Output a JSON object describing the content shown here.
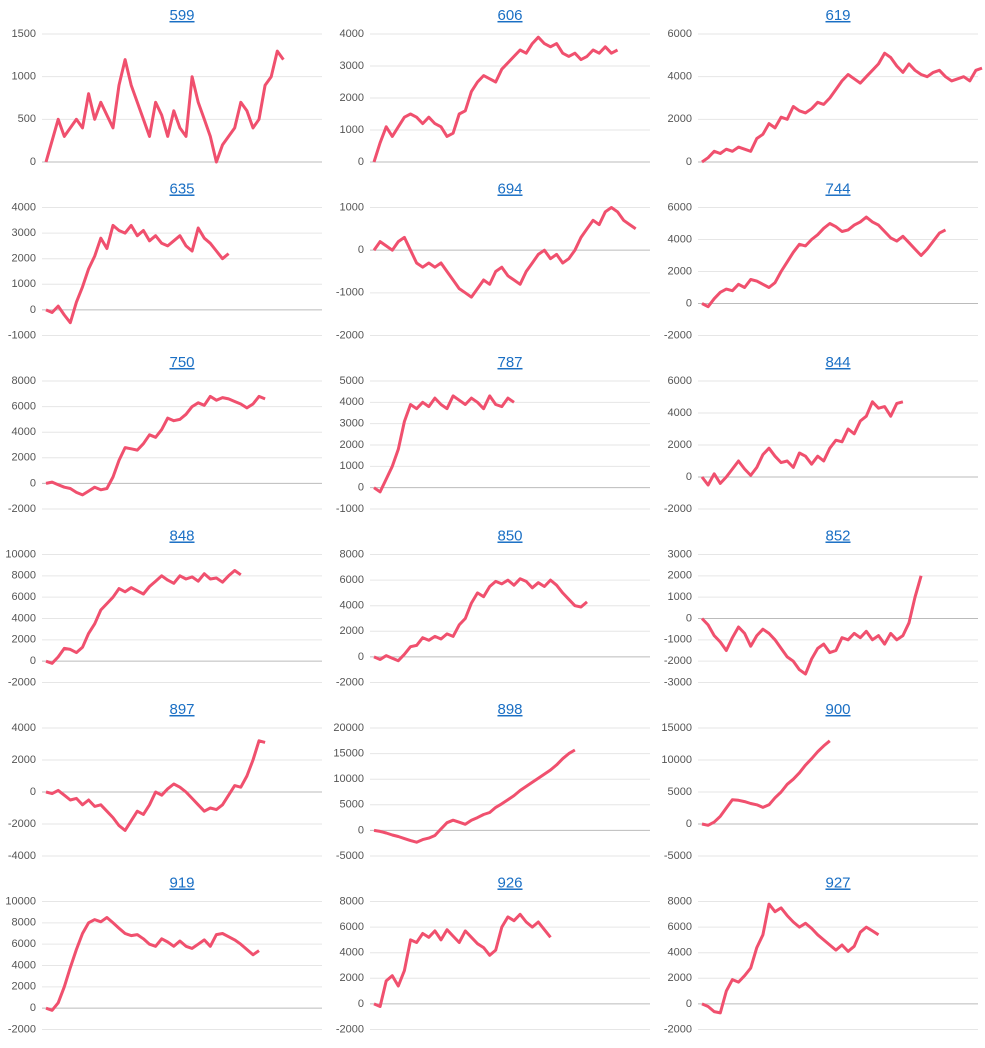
{
  "chart_data": [
    {
      "type": "line",
      "title": "599",
      "color": "#f0506e",
      "grid": true,
      "ylim": [
        0,
        1500
      ],
      "yticks": [
        0,
        500,
        1000,
        1500
      ],
      "values": [
        0,
        250,
        500,
        300,
        400,
        500,
        400,
        800,
        500,
        700,
        550,
        400,
        900,
        1200,
        900,
        700,
        500,
        300,
        700,
        550,
        300,
        600,
        400,
        300,
        1000,
        700,
        500,
        300,
        0,
        200,
        300,
        400,
        700,
        600,
        400,
        500,
        900,
        1000,
        1300,
        1200
      ]
    },
    {
      "type": "line",
      "title": "606",
      "color": "#f0506e",
      "grid": true,
      "ylim": [
        0,
        4000
      ],
      "yticks": [
        0,
        1000,
        2000,
        3000,
        4000
      ],
      "values": [
        0,
        600,
        1100,
        800,
        1100,
        1400,
        1500,
        1400,
        1200,
        1400,
        1200,
        1100,
        800,
        900,
        1500,
        1600,
        2200,
        2500,
        2700,
        2600,
        2500,
        2900,
        3100,
        3300,
        3500,
        3400,
        3700,
        3900,
        3700,
        3600,
        3700,
        3400,
        3300,
        3400,
        3200,
        3300,
        3500,
        3400,
        3600,
        3400,
        3500
      ]
    },
    {
      "type": "line",
      "title": "619",
      "color": "#f0506e",
      "grid": true,
      "ylim": [
        0,
        6000
      ],
      "yticks": [
        0,
        2000,
        4000,
        6000
      ],
      "values": [
        0,
        200,
        500,
        400,
        600,
        500,
        700,
        600,
        500,
        1100,
        1300,
        1800,
        1600,
        2100,
        2000,
        2600,
        2400,
        2300,
        2500,
        2800,
        2700,
        3000,
        3400,
        3800,
        4100,
        3900,
        3700,
        4000,
        4300,
        4600,
        5100,
        4900,
        4500,
        4200,
        4600,
        4300,
        4100,
        4000,
        4200,
        4300,
        4000,
        3800,
        3900,
        4000,
        3800,
        4300,
        4400
      ]
    },
    {
      "type": "line",
      "title": "635",
      "color": "#f0506e",
      "grid": true,
      "ylim": [
        -1000,
        4000
      ],
      "yticks": [
        -1000,
        0,
        1000,
        2000,
        3000,
        4000
      ],
      "values": [
        0,
        -100,
        150,
        -200,
        -500,
        300,
        900,
        1600,
        2100,
        2800,
        2400,
        3300,
        3100,
        3000,
        3300,
        2900,
        3100,
        2700,
        2900,
        2600,
        2500,
        2700,
        2900,
        2500,
        2300,
        3200,
        2800,
        2600,
        2300,
        2000,
        2200
      ]
    },
    {
      "type": "line",
      "title": "694",
      "color": "#f0506e",
      "grid": true,
      "ylim": [
        -2000,
        1000
      ],
      "yticks": [
        -2000,
        -1000,
        0,
        1000
      ],
      "values": [
        0,
        200,
        100,
        0,
        200,
        300,
        0,
        -300,
        -400,
        -300,
        -400,
        -300,
        -500,
        -700,
        -900,
        -1000,
        -1100,
        -900,
        -700,
        -800,
        -500,
        -400,
        -600,
        -700,
        -800,
        -500,
        -300,
        -100,
        0,
        -200,
        -100,
        -300,
        -200,
        0,
        300,
        500,
        700,
        600,
        900,
        1000,
        900,
        700,
        600,
        500
      ]
    },
    {
      "type": "line",
      "title": "744",
      "color": "#f0506e",
      "grid": true,
      "ylim": [
        -2000,
        6000
      ],
      "yticks": [
        -2000,
        0,
        2000,
        4000,
        6000
      ],
      "values": [
        0,
        -200,
        300,
        700,
        900,
        800,
        1200,
        1000,
        1500,
        1400,
        1200,
        1000,
        1300,
        2000,
        2600,
        3200,
        3700,
        3600,
        4000,
        4300,
        4700,
        5000,
        4800,
        4500,
        4600,
        4900,
        5100,
        5400,
        5100,
        4900,
        4500,
        4100,
        3900,
        4200,
        3800,
        3400,
        3000,
        3400,
        3900,
        4400,
        4600
      ]
    },
    {
      "type": "line",
      "title": "750",
      "color": "#f0506e",
      "grid": true,
      "ylim": [
        -2000,
        8000
      ],
      "yticks": [
        -2000,
        0,
        2000,
        4000,
        6000,
        8000
      ],
      "values": [
        0,
        100,
        -100,
        -300,
        -400,
        -700,
        -900,
        -600,
        -300,
        -500,
        -400,
        500,
        1800,
        2800,
        2700,
        2600,
        3100,
        3800,
        3600,
        4200,
        5100,
        4900,
        5000,
        5400,
        6000,
        6300,
        6100,
        6800,
        6500,
        6700,
        6600,
        6400,
        6200,
        5900,
        6200,
        6800,
        6600
      ]
    },
    {
      "type": "line",
      "title": "787",
      "color": "#f0506e",
      "grid": true,
      "ylim": [
        -1000,
        5000
      ],
      "yticks": [
        -1000,
        0,
        1000,
        2000,
        3000,
        4000,
        5000
      ],
      "values": [
        0,
        -200,
        400,
        1000,
        1800,
        3100,
        3900,
        3700,
        4000,
        3800,
        4200,
        3900,
        3700,
        4300,
        4100,
        3900,
        4200,
        4000,
        3700,
        4300,
        3900,
        3800,
        4200,
        4000
      ]
    },
    {
      "type": "line",
      "title": "844",
      "color": "#f0506e",
      "grid": true,
      "ylim": [
        -2000,
        6000
      ],
      "yticks": [
        -2000,
        0,
        2000,
        4000,
        6000
      ],
      "values": [
        0,
        -500,
        200,
        -400,
        0,
        500,
        1000,
        500,
        100,
        600,
        1400,
        1800,
        1300,
        900,
        1000,
        600,
        1500,
        1300,
        800,
        1300,
        1000,
        1800,
        2300,
        2200,
        3000,
        2700,
        3500,
        3800,
        4700,
        4300,
        4400,
        3800,
        4600,
        4700
      ]
    },
    {
      "type": "line",
      "title": "848",
      "color": "#f0506e",
      "grid": true,
      "ylim": [
        -2000,
        10000
      ],
      "yticks": [
        -2000,
        0,
        2000,
        4000,
        6000,
        8000,
        10000
      ],
      "values": [
        0,
        -200,
        400,
        1200,
        1100,
        800,
        1300,
        2600,
        3500,
        4800,
        5400,
        6000,
        6800,
        6500,
        6900,
        6600,
        6300,
        7000,
        7500,
        8000,
        7600,
        7300,
        8000,
        7700,
        7900,
        7500,
        8200,
        7700,
        7800,
        7400,
        8000,
        8500,
        8100
      ]
    },
    {
      "type": "line",
      "title": "850",
      "color": "#f0506e",
      "grid": true,
      "ylim": [
        -2000,
        8000
      ],
      "yticks": [
        -2000,
        0,
        2000,
        4000,
        6000,
        8000
      ],
      "values": [
        0,
        -200,
        100,
        -100,
        -300,
        200,
        800,
        900,
        1500,
        1300,
        1600,
        1400,
        1800,
        1600,
        2500,
        3000,
        4200,
        5000,
        4700,
        5500,
        5900,
        5700,
        6000,
        5600,
        6100,
        5900,
        5400,
        5800,
        5500,
        6000,
        5600,
        5000,
        4500,
        4000,
        3900,
        4300
      ]
    },
    {
      "type": "line",
      "title": "852",
      "color": "#f0506e",
      "grid": true,
      "ylim": [
        -3000,
        3000
      ],
      "yticks": [
        -3000,
        -2000,
        -1000,
        0,
        1000,
        2000,
        3000
      ],
      "values": [
        0,
        -300,
        -800,
        -1100,
        -1500,
        -900,
        -400,
        -700,
        -1300,
        -800,
        -500,
        -700,
        -1000,
        -1400,
        -1800,
        -2000,
        -2400,
        -2600,
        -1900,
        -1400,
        -1200,
        -1600,
        -1500,
        -900,
        -1000,
        -700,
        -900,
        -600,
        -1000,
        -800,
        -1200,
        -700,
        -1000,
        -800,
        -200,
        1000,
        2000
      ]
    },
    {
      "type": "line",
      "title": "897",
      "color": "#f0506e",
      "grid": true,
      "ylim": [
        -4000,
        4000
      ],
      "yticks": [
        -4000,
        -2000,
        0,
        2000,
        4000
      ],
      "values": [
        0,
        -100,
        100,
        -200,
        -500,
        -400,
        -800,
        -500,
        -900,
        -800,
        -1200,
        -1600,
        -2100,
        -2400,
        -1800,
        -1200,
        -1400,
        -800,
        0,
        -200,
        200,
        500,
        300,
        0,
        -400,
        -800,
        -1200,
        -1000,
        -1100,
        -800,
        -200,
        400,
        300,
        1000,
        2000,
        3200,
        3100
      ]
    },
    {
      "type": "line",
      "title": "898",
      "color": "#f0506e",
      "grid": true,
      "ylim": [
        -5000,
        20000
      ],
      "yticks": [
        -5000,
        0,
        5000,
        10000,
        15000,
        20000
      ],
      "values": [
        0,
        -200,
        -500,
        -900,
        -1200,
        -1600,
        -2000,
        -2300,
        -1800,
        -1500,
        -1000,
        300,
        1500,
        2000,
        1600,
        1200,
        2000,
        2500,
        3100,
        3500,
        4500,
        5200,
        6000,
        6800,
        7800,
        8600,
        9400,
        10200,
        11000,
        11800,
        12800,
        14000,
        15000,
        15700
      ]
    },
    {
      "type": "line",
      "title": "900",
      "color": "#f0506e",
      "grid": true,
      "ylim": [
        -5000,
        15000
      ],
      "yticks": [
        -5000,
        0,
        5000,
        10000,
        15000
      ],
      "values": [
        0,
        -200,
        300,
        1200,
        2500,
        3800,
        3700,
        3500,
        3200,
        3000,
        2600,
        3000,
        4100,
        5000,
        6200,
        7000,
        8000,
        9200,
        10200,
        11300,
        12200,
        13000
      ]
    },
    {
      "type": "line",
      "title": "919",
      "color": "#f0506e",
      "grid": true,
      "ylim": [
        -2000,
        10000
      ],
      "yticks": [
        -2000,
        0,
        2000,
        4000,
        6000,
        8000,
        10000
      ],
      "values": [
        0,
        -200,
        500,
        2000,
        3800,
        5500,
        7000,
        8000,
        8300,
        8100,
        8500,
        8000,
        7500,
        7000,
        6800,
        6900,
        6500,
        6000,
        5800,
        6500,
        6200,
        5800,
        6300,
        5800,
        5600,
        6000,
        6400,
        5800,
        6900,
        7000,
        6700,
        6400,
        6000,
        5500,
        5000,
        5400
      ]
    },
    {
      "type": "line",
      "title": "926",
      "color": "#f0506e",
      "grid": true,
      "ylim": [
        -2000,
        8000
      ],
      "yticks": [
        -2000,
        0,
        2000,
        4000,
        6000,
        8000
      ],
      "values": [
        0,
        -200,
        1800,
        2200,
        1400,
        2600,
        5000,
        4800,
        5500,
        5200,
        5700,
        5000,
        5800,
        5300,
        4800,
        5700,
        5200,
        4700,
        4400,
        3800,
        4200,
        6000,
        6800,
        6500,
        7000,
        6400,
        6000,
        6400,
        5800,
        5200
      ]
    },
    {
      "type": "line",
      "title": "927",
      "color": "#f0506e",
      "grid": true,
      "ylim": [
        -2000,
        8000
      ],
      "yticks": [
        -2000,
        0,
        2000,
        4000,
        6000,
        8000
      ],
      "values": [
        0,
        -200,
        -600,
        -700,
        1000,
        1900,
        1700,
        2200,
        2800,
        4400,
        5400,
        7800,
        7200,
        7500,
        6900,
        6400,
        6000,
        6300,
        5900,
        5400,
        5000,
        4600,
        4200,
        4600,
        4100,
        4500,
        5600,
        6000,
        5700,
        5400
      ]
    }
  ]
}
